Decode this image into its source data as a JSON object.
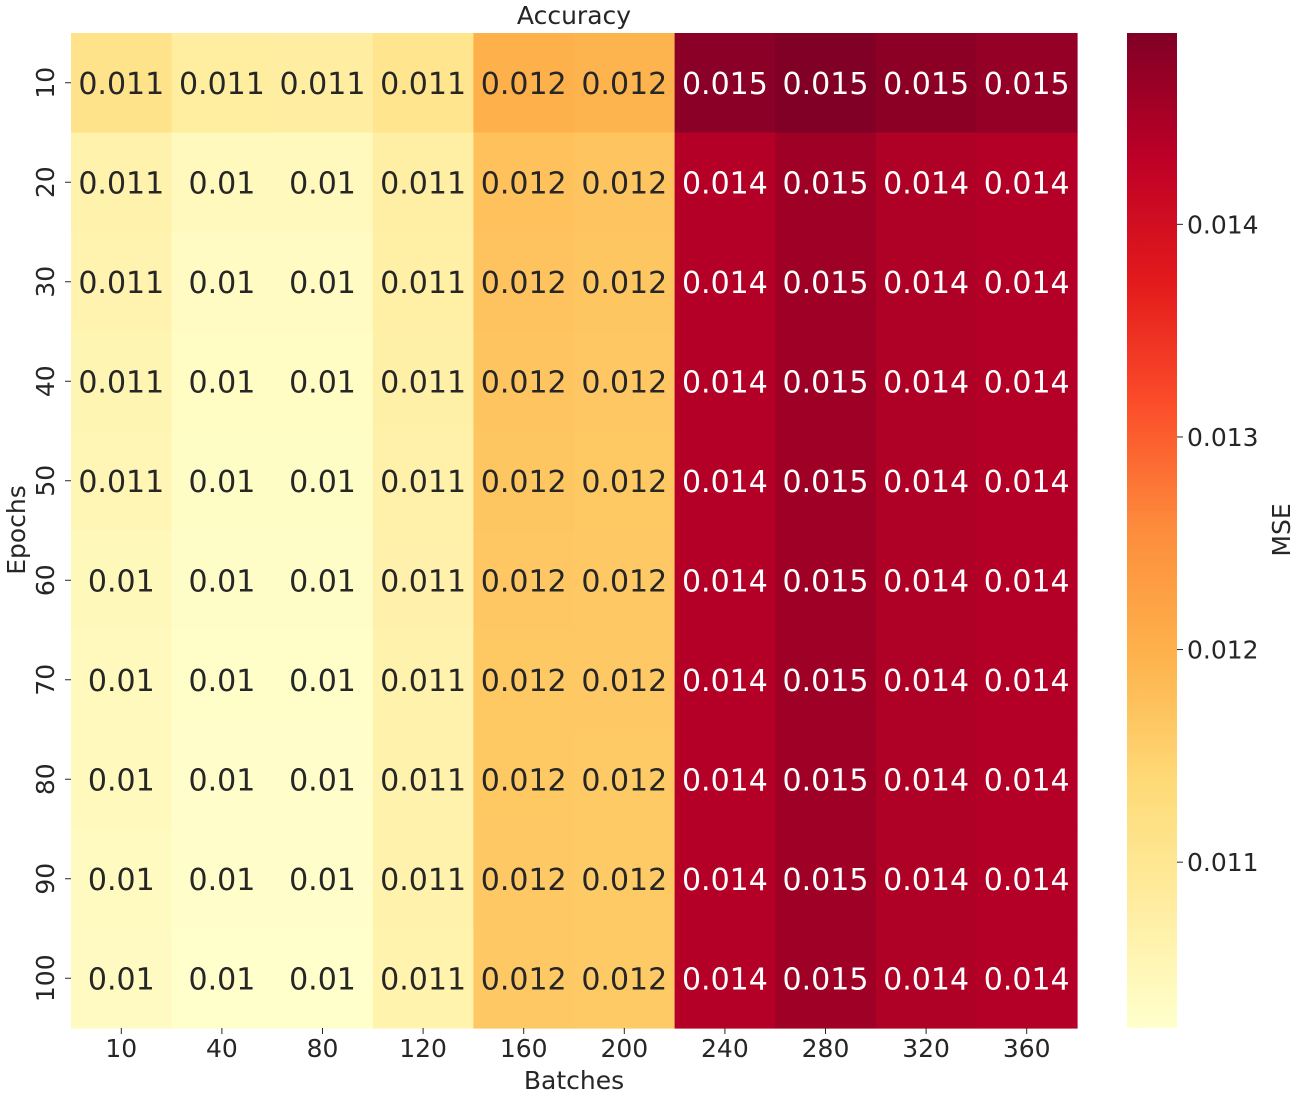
{
  "chart_data": {
    "type": "heatmap",
    "title": "Accuracy",
    "xlabel": "Batches",
    "ylabel": "Epochs",
    "colorbar_label": "MSE",
    "colormap": "YlOrRd",
    "x_categories": [
      "10",
      "40",
      "80",
      "120",
      "160",
      "200",
      "240",
      "280",
      "320",
      "360"
    ],
    "y_categories": [
      "10",
      "20",
      "30",
      "40",
      "50",
      "60",
      "70",
      "80",
      "90",
      "100"
    ],
    "colorbar_range": [
      0.01022,
      0.0149
    ],
    "colorbar_ticks": [
      "0.011",
      "0.012",
      "0.013",
      "0.014"
    ],
    "colorbar_tick_values": [
      0.011,
      0.012,
      0.013,
      0.014
    ],
    "values": [
      [
        0.0111,
        0.0108,
        0.01078,
        0.01105,
        0.012,
        0.01195,
        0.0148,
        0.0149,
        0.01478,
        0.0147
      ],
      [
        0.01065,
        0.0104,
        0.0104,
        0.01075,
        0.01175,
        0.0117,
        0.0144,
        0.0146,
        0.01445,
        0.0144
      ],
      [
        0.0106,
        0.01035,
        0.01035,
        0.01072,
        0.01172,
        0.01168,
        0.0144,
        0.0146,
        0.01445,
        0.0144
      ],
      [
        0.01055,
        0.01032,
        0.01032,
        0.0107,
        0.0117,
        0.01166,
        0.0144,
        0.0146,
        0.01445,
        0.0144
      ],
      [
        0.01052,
        0.0103,
        0.0103,
        0.01068,
        0.01168,
        0.01165,
        0.0144,
        0.0146,
        0.01445,
        0.0144
      ],
      [
        0.01045,
        0.01028,
        0.01028,
        0.01066,
        0.01166,
        0.01164,
        0.0144,
        0.0146,
        0.01445,
        0.0144
      ],
      [
        0.01042,
        0.01026,
        0.01026,
        0.01065,
        0.01165,
        0.01163,
        0.0144,
        0.0146,
        0.01445,
        0.0144
      ],
      [
        0.0104,
        0.01025,
        0.01025,
        0.01064,
        0.01165,
        0.01162,
        0.0144,
        0.0146,
        0.01445,
        0.0144
      ],
      [
        0.01038,
        0.01024,
        0.01024,
        0.01063,
        0.01164,
        0.01162,
        0.0144,
        0.0146,
        0.01445,
        0.0144
      ],
      [
        0.01037,
        0.01022,
        0.01022,
        0.01062,
        0.01164,
        0.01161,
        0.0144,
        0.0146,
        0.01445,
        0.0144
      ]
    ],
    "annotations": [
      [
        "0.011",
        "0.011",
        "0.011",
        "0.011",
        "0.012",
        "0.012",
        "0.015",
        "0.015",
        "0.015",
        "0.015"
      ],
      [
        "0.011",
        "0.01",
        "0.01",
        "0.011",
        "0.012",
        "0.012",
        "0.014",
        "0.015",
        "0.014",
        "0.014"
      ],
      [
        "0.011",
        "0.01",
        "0.01",
        "0.011",
        "0.012",
        "0.012",
        "0.014",
        "0.015",
        "0.014",
        "0.014"
      ],
      [
        "0.011",
        "0.01",
        "0.01",
        "0.011",
        "0.012",
        "0.012",
        "0.014",
        "0.015",
        "0.014",
        "0.014"
      ],
      [
        "0.011",
        "0.01",
        "0.01",
        "0.011",
        "0.012",
        "0.012",
        "0.014",
        "0.015",
        "0.014",
        "0.014"
      ],
      [
        "0.01",
        "0.01",
        "0.01",
        "0.011",
        "0.012",
        "0.012",
        "0.014",
        "0.015",
        "0.014",
        "0.014"
      ],
      [
        "0.01",
        "0.01",
        "0.01",
        "0.011",
        "0.012",
        "0.012",
        "0.014",
        "0.015",
        "0.014",
        "0.014"
      ],
      [
        "0.01",
        "0.01",
        "0.01",
        "0.011",
        "0.012",
        "0.012",
        "0.014",
        "0.015",
        "0.014",
        "0.014"
      ],
      [
        "0.01",
        "0.01",
        "0.01",
        "0.011",
        "0.012",
        "0.012",
        "0.014",
        "0.015",
        "0.014",
        "0.014"
      ],
      [
        "0.01",
        "0.01",
        "0.01",
        "0.011",
        "0.012",
        "0.012",
        "0.014",
        "0.015",
        "0.014",
        "0.014"
      ]
    ],
    "grid": false
  }
}
